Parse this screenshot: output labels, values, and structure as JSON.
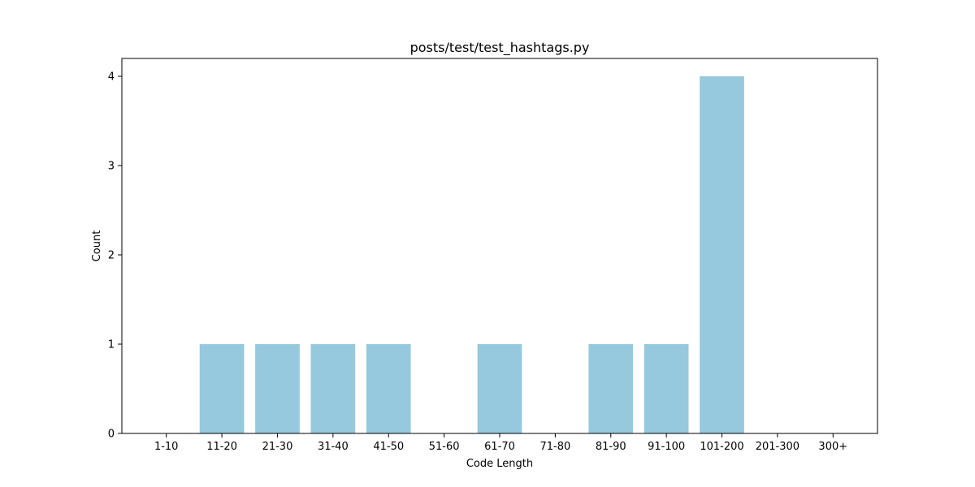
{
  "chart_data": {
    "type": "bar",
    "title": "posts/test/test_hashtags.py",
    "xlabel": "Code Length",
    "ylabel": "Count",
    "categories": [
      "1-10",
      "11-20",
      "21-30",
      "31-40",
      "41-50",
      "51-60",
      "61-70",
      "71-80",
      "81-90",
      "91-100",
      "101-200",
      "201-300",
      "300+"
    ],
    "values": [
      0,
      1,
      1,
      1,
      1,
      0,
      1,
      0,
      1,
      1,
      4,
      0,
      0
    ],
    "ylim": [
      0,
      4.2
    ],
    "yticks": [
      0,
      1,
      2,
      3,
      4
    ],
    "bar_color": "#96c9dd",
    "grid": false,
    "legend": "none"
  }
}
